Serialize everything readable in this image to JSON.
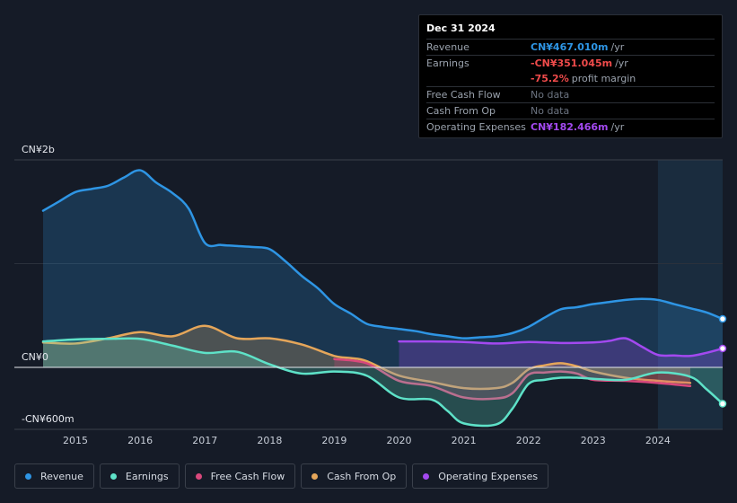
{
  "tooltip": {
    "date": "Dec 31 2024",
    "rows": [
      {
        "label": "Revenue",
        "value": "CN¥467.010m",
        "unit": "/yr",
        "color": "#2e95e4"
      },
      {
        "label": "Earnings",
        "value": "-CN¥351.045m",
        "unit": "/yr",
        "color": "#ef4b4b"
      },
      {
        "label": "",
        "value": "-75.2%",
        "unit": "profit margin",
        "color": "#ef4b4b"
      },
      {
        "label": "Free Cash Flow",
        "value": "No data",
        "unit": "",
        "color": "#6b7380"
      },
      {
        "label": "Cash From Op",
        "value": "No data",
        "unit": "",
        "color": "#6b7380"
      },
      {
        "label": "Operating Expenses",
        "value": "CN¥182.466m",
        "unit": "/yr",
        "color": "#a349f0"
      }
    ]
  },
  "chart_data": {
    "type": "area",
    "title": "",
    "currency_unit": "CN¥ millions",
    "y_labels": [
      "CN¥2b",
      "CN¥0",
      "-CN¥600m"
    ],
    "ylim": [
      -600,
      2000
    ],
    "xlim": [
      2014.5,
      2025.0
    ],
    "x_ticks": [
      "2015",
      "2016",
      "2017",
      "2018",
      "2019",
      "2020",
      "2021",
      "2022",
      "2023",
      "2024"
    ],
    "highlight_from": 2024.0,
    "series": [
      {
        "name": "Revenue",
        "color": "#2e95e4",
        "fill": true,
        "points": [
          [
            2014.5,
            1510
          ],
          [
            2014.75,
            1600
          ],
          [
            2015.0,
            1690
          ],
          [
            2015.25,
            1720
          ],
          [
            2015.5,
            1750
          ],
          [
            2015.75,
            1830
          ],
          [
            2016.0,
            1900
          ],
          [
            2016.25,
            1780
          ],
          [
            2016.5,
            1680
          ],
          [
            2016.75,
            1530
          ],
          [
            2017.0,
            1200
          ],
          [
            2017.25,
            1180
          ],
          [
            2017.5,
            1170
          ],
          [
            2017.75,
            1160
          ],
          [
            2018.0,
            1140
          ],
          [
            2018.25,
            1020
          ],
          [
            2018.5,
            880
          ],
          [
            2018.75,
            760
          ],
          [
            2019.0,
            610
          ],
          [
            2019.25,
            520
          ],
          [
            2019.5,
            420
          ],
          [
            2019.75,
            390
          ],
          [
            2020.0,
            370
          ],
          [
            2020.25,
            350
          ],
          [
            2020.5,
            320
          ],
          [
            2020.75,
            300
          ],
          [
            2021.0,
            280
          ],
          [
            2021.25,
            290
          ],
          [
            2021.5,
            300
          ],
          [
            2021.75,
            330
          ],
          [
            2022.0,
            390
          ],
          [
            2022.25,
            480
          ],
          [
            2022.5,
            560
          ],
          [
            2022.75,
            580
          ],
          [
            2023.0,
            610
          ],
          [
            2023.25,
            630
          ],
          [
            2023.5,
            650
          ],
          [
            2023.75,
            660
          ],
          [
            2024.0,
            650
          ],
          [
            2024.25,
            610
          ],
          [
            2024.5,
            570
          ],
          [
            2024.75,
            530
          ],
          [
            2025.0,
            467
          ]
        ]
      },
      {
        "name": "Operating Expenses",
        "color": "#a349f0",
        "fill": true,
        "points": [
          [
            2020.0,
            250
          ],
          [
            2020.5,
            250
          ],
          [
            2021.0,
            245
          ],
          [
            2021.5,
            230
          ],
          [
            2022.0,
            245
          ],
          [
            2022.5,
            235
          ],
          [
            2023.0,
            240
          ],
          [
            2023.25,
            255
          ],
          [
            2023.5,
            280
          ],
          [
            2023.75,
            200
          ],
          [
            2024.0,
            120
          ],
          [
            2024.25,
            115
          ],
          [
            2024.5,
            110
          ],
          [
            2024.75,
            140
          ],
          [
            2025.0,
            182
          ]
        ]
      },
      {
        "name": "Cash From Op",
        "color": "#e5a65a",
        "fill": true,
        "points": [
          [
            2014.5,
            240
          ],
          [
            2015.0,
            230
          ],
          [
            2015.5,
            280
          ],
          [
            2016.0,
            340
          ],
          [
            2016.5,
            300
          ],
          [
            2017.0,
            400
          ],
          [
            2017.5,
            280
          ],
          [
            2018.0,
            280
          ],
          [
            2018.5,
            220
          ],
          [
            2019.0,
            110
          ],
          [
            2019.25,
            90
          ],
          [
            2019.5,
            60
          ],
          [
            2020.0,
            -80
          ],
          [
            2020.5,
            -140
          ],
          [
            2021.0,
            -200
          ],
          [
            2021.5,
            -200
          ],
          [
            2021.75,
            -150
          ],
          [
            2022.0,
            -20
          ],
          [
            2022.25,
            20
          ],
          [
            2022.5,
            40
          ],
          [
            2022.75,
            10
          ],
          [
            2023.0,
            -40
          ],
          [
            2023.5,
            -100
          ],
          [
            2024.0,
            -130
          ],
          [
            2024.5,
            -150
          ]
        ]
      },
      {
        "name": "Free Cash Flow",
        "color": "#d9487c",
        "fill": true,
        "points": [
          [
            2019.0,
            80
          ],
          [
            2019.5,
            40
          ],
          [
            2020.0,
            -130
          ],
          [
            2020.5,
            -180
          ],
          [
            2021.0,
            -290
          ],
          [
            2021.5,
            -300
          ],
          [
            2021.75,
            -250
          ],
          [
            2022.0,
            -70
          ],
          [
            2022.25,
            -50
          ],
          [
            2022.5,
            -40
          ],
          [
            2022.75,
            -60
          ],
          [
            2023.0,
            -120
          ],
          [
            2023.5,
            -130
          ],
          [
            2024.0,
            -150
          ],
          [
            2024.5,
            -180
          ]
        ]
      },
      {
        "name": "Earnings",
        "color": "#5ee2c8",
        "fill": true,
        "points": [
          [
            2014.5,
            250
          ],
          [
            2015.0,
            270
          ],
          [
            2015.5,
            275
          ],
          [
            2016.0,
            275
          ],
          [
            2016.5,
            210
          ],
          [
            2017.0,
            140
          ],
          [
            2017.5,
            150
          ],
          [
            2018.0,
            30
          ],
          [
            2018.5,
            -60
          ],
          [
            2019.0,
            -40
          ],
          [
            2019.5,
            -80
          ],
          [
            2020.0,
            -290
          ],
          [
            2020.5,
            -310
          ],
          [
            2020.75,
            -420
          ],
          [
            2021.0,
            -540
          ],
          [
            2021.5,
            -550
          ],
          [
            2021.75,
            -400
          ],
          [
            2022.0,
            -160
          ],
          [
            2022.25,
            -120
          ],
          [
            2022.5,
            -100
          ],
          [
            2022.75,
            -100
          ],
          [
            2023.0,
            -110
          ],
          [
            2023.5,
            -120
          ],
          [
            2024.0,
            -50
          ],
          [
            2024.5,
            -90
          ],
          [
            2024.75,
            -210
          ],
          [
            2025.0,
            -351
          ]
        ]
      }
    ],
    "end_markers": [
      "Revenue",
      "Operating Expenses",
      "Earnings"
    ]
  },
  "legend": [
    {
      "label": "Revenue",
      "color": "#2e95e4"
    },
    {
      "label": "Earnings",
      "color": "#5ee2c8"
    },
    {
      "label": "Free Cash Flow",
      "color": "#d9487c"
    },
    {
      "label": "Cash From Op",
      "color": "#e5a65a"
    },
    {
      "label": "Operating Expenses",
      "color": "#a349f0"
    }
  ]
}
